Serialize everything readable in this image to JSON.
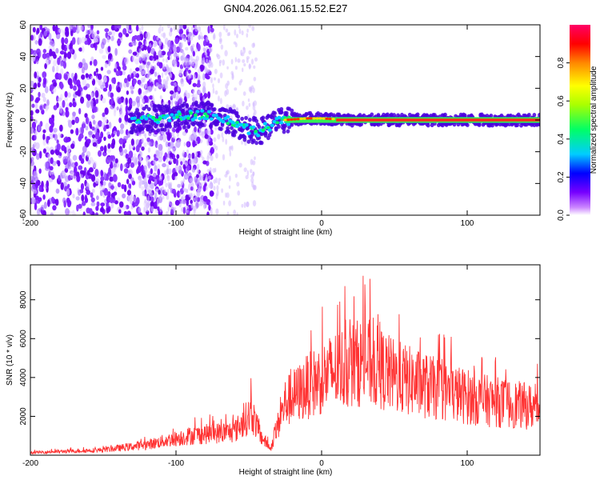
{
  "title": "GN04.2026.061.15.52.E27",
  "chart_data": [
    {
      "type": "heatmap",
      "name": "spectrogram",
      "xlabel": "Height of straight line (km)",
      "ylabel": "Frequency (Hz)",
      "xlim": [
        -200,
        150
      ],
      "ylim": [
        -60,
        60
      ],
      "xticks": [
        -200,
        -100,
        0,
        100
      ],
      "yticks": [
        -60,
        -40,
        -20,
        0,
        20,
        40,
        60
      ],
      "grid": false,
      "ridge": [
        {
          "height": -130,
          "frequency": 0
        },
        {
          "height": -100,
          "frequency": 2
        },
        {
          "height": -80,
          "frequency": 4
        },
        {
          "height": -65,
          "frequency": 0
        },
        {
          "height": -50,
          "frequency": -6
        },
        {
          "height": -42,
          "frequency": -7
        },
        {
          "height": -35,
          "frequency": -3
        },
        {
          "height": -25,
          "frequency": 0
        },
        {
          "height": -10,
          "frequency": 1
        },
        {
          "height": 0,
          "frequency": 1
        },
        {
          "height": 20,
          "frequency": 0
        },
        {
          "height": 150,
          "frequency": 0
        }
      ],
      "colorbar": {
        "label": "Normalized spectral amplitude",
        "range": [
          0,
          1
        ],
        "ticks": [
          0.0,
          0.2,
          0.4,
          0.6,
          0.8
        ],
        "tick_labels": [
          "0.0",
          "0.2",
          "0.4",
          "0.6",
          "0.8"
        ],
        "colors": [
          "#ffffff",
          "#cc88ff",
          "#7700ff",
          "#0000ff",
          "#00ccff",
          "#00ff66",
          "#aaff00",
          "#ffff00",
          "#ff8800",
          "#ff0000",
          "#ff0066"
        ]
      }
    },
    {
      "type": "line",
      "name": "snr",
      "xlabel": "Height of straight line (km)",
      "ylabel": "SNR (10 * v/v)",
      "xlim": [
        -200,
        150
      ],
      "ylim": [
        0,
        9800
      ],
      "xticks": [
        -200,
        -100,
        0,
        100
      ],
      "yticks": [
        2000,
        4000,
        6000,
        8000
      ],
      "color": "#ff3333",
      "grid": false,
      "envelope": [
        {
          "x": -200,
          "y": 200
        },
        {
          "x": -150,
          "y": 400
        },
        {
          "x": -120,
          "y": 800
        },
        {
          "x": -90,
          "y": 1500
        },
        {
          "x": -60,
          "y": 1800
        },
        {
          "x": -48,
          "y": 3200
        },
        {
          "x": -42,
          "y": 1500
        },
        {
          "x": -35,
          "y": 500
        },
        {
          "x": -25,
          "y": 4000
        },
        {
          "x": -10,
          "y": 5200
        },
        {
          "x": 10,
          "y": 6500
        },
        {
          "x": 30,
          "y": 7200
        },
        {
          "x": 50,
          "y": 6000
        },
        {
          "x": 80,
          "y": 5000
        },
        {
          "x": 110,
          "y": 4200
        },
        {
          "x": 150,
          "y": 3600
        }
      ]
    }
  ]
}
